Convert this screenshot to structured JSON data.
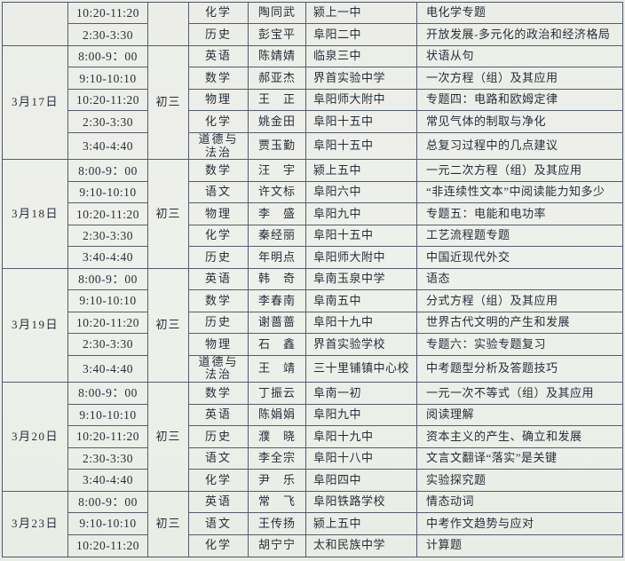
{
  "document": {
    "type": "scanned-lesson-schedule-table",
    "grade_label": "初三",
    "colors": {
      "paper": "#edeeea",
      "ink": "#262e3a",
      "line": "#535e6c"
    }
  },
  "schedule": {
    "groups": [
      {
        "date": "",
        "grade": "",
        "rows": [
          {
            "time": "10:20-11:20",
            "subject": "化学",
            "teacher": "陶同武",
            "school": "颍上一中",
            "topic": "电化学专题"
          },
          {
            "time": "2:30-3:30",
            "subject": "历史",
            "teacher": "彭宝平",
            "school": "阜阳二中",
            "topic": "开放发展-多元化的政治和经济格局"
          }
        ]
      },
      {
        "date": "3月17日",
        "grade": "初三",
        "rows": [
          {
            "time": "8:00-9：00",
            "subject": "英语",
            "teacher": "陈婧婧",
            "school": "临泉三中",
            "topic": "状语从句"
          },
          {
            "time": "9:10-10:10",
            "subject": "数学",
            "teacher": "郝亚杰",
            "school": "界首实验中学",
            "topic": "一次方程（组）及其应用"
          },
          {
            "time": "10:20-11:20",
            "subject": "物理",
            "teacher": "王　正",
            "school": "阜阳师大附中",
            "topic": "专题四：电路和欧姆定律"
          },
          {
            "time": "2:30-3:30",
            "subject": "化学",
            "teacher": "姚金田",
            "school": "阜阳十五中",
            "topic": "常见气体的制取与净化"
          },
          {
            "time": "3:40-4:40",
            "subject": "道德与\n法治",
            "teacher": "贾玉勤",
            "school": "阜阳十五中",
            "topic": "总复习过程中的几点建议"
          }
        ]
      },
      {
        "date": "3月18日",
        "grade": "初三",
        "rows": [
          {
            "time": "8:00-9：00",
            "subject": "数学",
            "teacher": "汪　宇",
            "school": "颍上五中",
            "topic": "一元二次方程（组）及其应用"
          },
          {
            "time": "9:10-10:10",
            "subject": "语文",
            "teacher": "许文标",
            "school": "阜阳六中",
            "topic": "“非连续性文本”中阅读能力知多少"
          },
          {
            "time": "10:20-11:20",
            "subject": "物理",
            "teacher": "李　盛",
            "school": "阜阳九中",
            "topic": "专题五：电能和电功率"
          },
          {
            "time": "2:30-3:30",
            "subject": "化学",
            "teacher": "秦经丽",
            "school": "阜阳十五中",
            "topic": "工艺流程题专题"
          },
          {
            "time": "3:40-4:40",
            "subject": "历史",
            "teacher": "年明点",
            "school": "阜阳师大附中",
            "topic": "中国近现代外交"
          }
        ]
      },
      {
        "date": "3月19日",
        "grade": "初三",
        "rows": [
          {
            "time": "8:00-9：00",
            "subject": "英语",
            "teacher": "韩　奇",
            "school": "阜南玉泉中学",
            "topic": "语态"
          },
          {
            "time": "9:10-10:10",
            "subject": "数学",
            "teacher": "李春南",
            "school": "阜南五中",
            "topic": "分式方程（组）及其应用"
          },
          {
            "time": "10:20-11:20",
            "subject": "历史",
            "teacher": "谢蔷蔷",
            "school": "阜阳十九中",
            "topic": "世界古代文明的产生和发展"
          },
          {
            "time": "2:30-3:30",
            "subject": "物理",
            "teacher": "石　鑫",
            "school": "界首实验学校",
            "topic": "专题六：实验专题复习"
          },
          {
            "time": "3:40-4:40",
            "subject": "道德与\n法治",
            "teacher": "王　靖",
            "school": "三十里铺镇中心校",
            "topic": "中考题型分析及答题技巧"
          }
        ]
      },
      {
        "date": "3月20日",
        "grade": "初三",
        "rows": [
          {
            "time": "8:00-9：00",
            "subject": "数学",
            "teacher": "丁振云",
            "school": "阜南一初",
            "topic": "一元一次不等式（组）及其应用"
          },
          {
            "time": "9:10-10:10",
            "subject": "英语",
            "teacher": "陈娟娟",
            "school": "阜阳九中",
            "topic": "阅读理解"
          },
          {
            "time": "10:20-11:20",
            "subject": "历史",
            "teacher": "濮　晓",
            "school": "阜阳十九中",
            "topic": "资本主义的产生、确立和发展"
          },
          {
            "time": "2:30-3:30",
            "subject": "语文",
            "teacher": "李全宗",
            "school": "阜阳十八中",
            "topic": "文言文翻译“落实”是关键"
          },
          {
            "time": "3:40-4:40",
            "subject": "化学",
            "teacher": "尹　乐",
            "school": "阜阳四中",
            "topic": "实验探究题"
          }
        ]
      },
      {
        "date": "3月23日",
        "grade": "初三",
        "rows": [
          {
            "time": "8:00-9：00",
            "subject": "英语",
            "teacher": "常　飞",
            "school": "阜阳铁路学校",
            "topic": "情态动词"
          },
          {
            "time": "9:10-10:10",
            "subject": "语文",
            "teacher": "王传扬",
            "school": "颍上五中",
            "topic": "中考作文趋势与应对"
          },
          {
            "time": "10:20-11:20",
            "subject": "化学",
            "teacher": "胡宁宁",
            "school": "太和民族中学",
            "topic": "计算题"
          }
        ]
      }
    ]
  }
}
